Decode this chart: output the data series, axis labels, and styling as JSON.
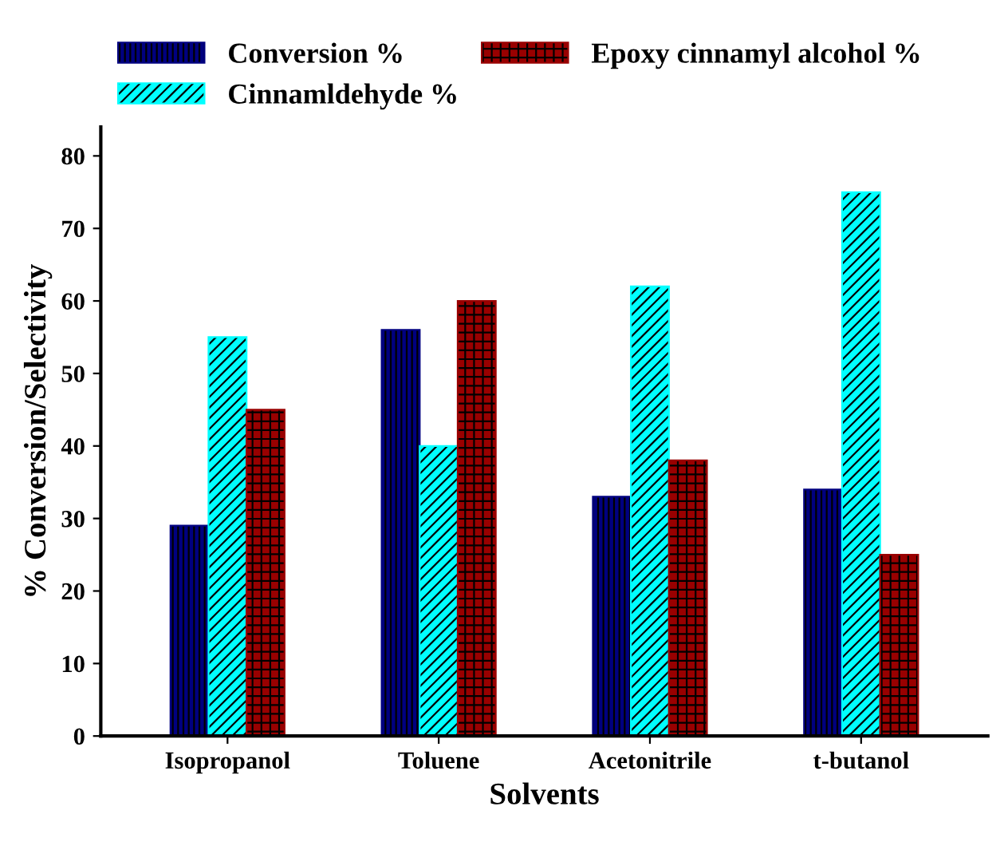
{
  "chart_data": {
    "type": "bar",
    "xlabel": "Solvents",
    "ylabel": "% Conversion/Selectivity",
    "categories": [
      "Isopropanol",
      "Toluene",
      "Acetonitrile",
      "t-butanol"
    ],
    "series": [
      {
        "name": "Conversion %",
        "color": "#000080",
        "values": [
          29,
          56,
          33,
          34
        ]
      },
      {
        "name": "Cinnamldehyde %",
        "color": "#00ffff",
        "values": [
          55,
          40,
          62,
          75
        ]
      },
      {
        "name": "Epoxy cinnamyl alcohol %",
        "color": "#990000",
        "values": [
          45,
          60,
          38,
          25
        ]
      }
    ],
    "ylim": [
      0,
      84
    ],
    "yticks": [
      0,
      10,
      20,
      30,
      40,
      50,
      60,
      70,
      80
    ],
    "grid": false,
    "legend": "top"
  }
}
